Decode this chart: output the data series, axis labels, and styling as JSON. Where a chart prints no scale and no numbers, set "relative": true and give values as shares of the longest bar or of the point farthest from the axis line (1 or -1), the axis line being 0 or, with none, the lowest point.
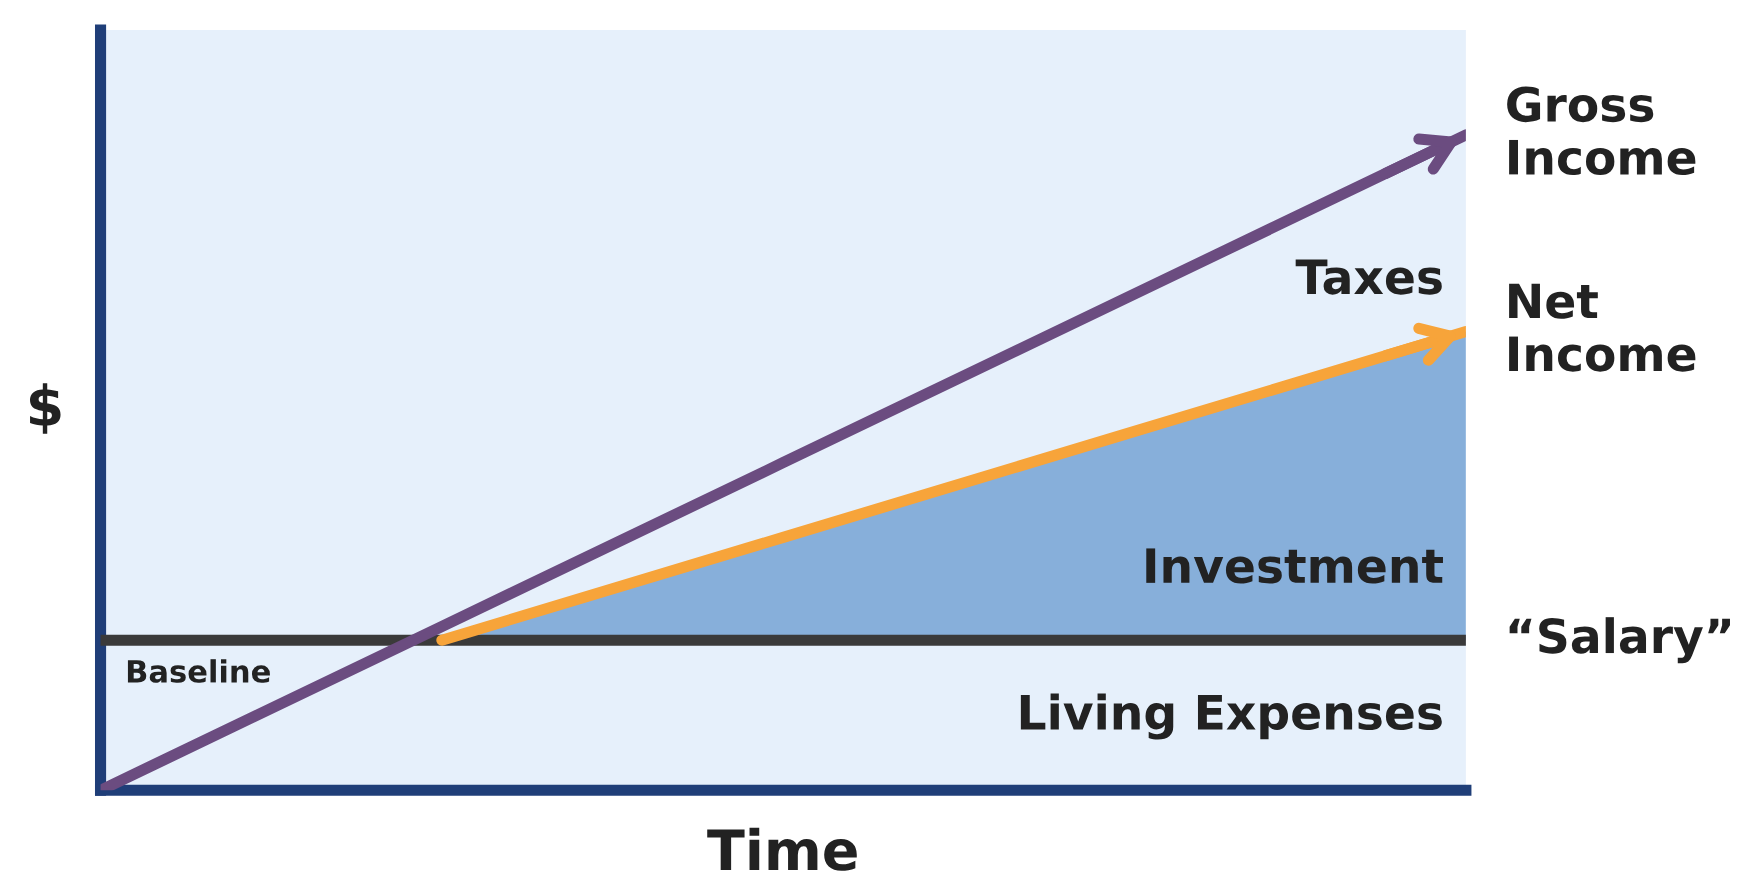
{
  "chart_data": {
    "type": "line",
    "relative": true,
    "xlabel": "Time",
    "ylabel": "$",
    "legend": "right",
    "categories": [
      null,
      null,
      null,
      null,
      null
    ],
    "series": [
      {
        "name": "Gross Income",
        "color": "#6b4c80",
        "values": [
          0,
          0.25,
          0.5,
          0.75,
          1
        ]
      },
      {
        "name": "Net Income",
        "color": "#f7a43a",
        "values": [
          null,
          0.229,
          0.386,
          0.543,
          0.7
        ],
        "lower": [
          null,
          0.229,
          0.229,
          0.229,
          0.229
        ],
        "upper": [
          null,
          0.229,
          0.386,
          0.543,
          0.7
        ]
      },
      {
        "name": "“Salary”",
        "color": "#3a3a3a",
        "values": [
          0.229,
          0.229,
          0.229,
          0.229,
          0.229
        ]
      }
    ],
    "annotations": [
      "Taxes",
      "Investment",
      "Living Expenses",
      "Baseline"
    ]
  }
}
